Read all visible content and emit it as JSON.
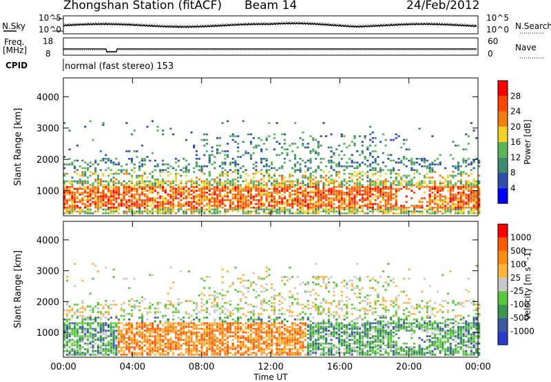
{
  "header": {
    "station": "Zhongshan Station (fitACF)",
    "beam": "Beam 14",
    "date": "24/Feb/2012"
  },
  "sky_panel": {
    "left_label": "N.Sky",
    "right_label": "N.Search",
    "ticks_left": [
      "10^5",
      "10^0"
    ],
    "ticks_right": [
      "10^5",
      "10^0"
    ]
  },
  "freq_panel": {
    "left_label_1": "Freq.",
    "left_label_2": "[MHz]",
    "right_label": "Nave",
    "ticks_left": [
      "18",
      "8"
    ],
    "ticks_right": [
      "60",
      "0"
    ]
  },
  "cpid": {
    "label": "CPID",
    "text": "normal (fast stereo) 153"
  },
  "colors": {
    "power": [
      "#0000ff",
      "#2f4fa8",
      "#3c8c6e",
      "#5ab45a",
      "#f0d228",
      "#f07d10",
      "#ff4600",
      "#ff0000"
    ],
    "velocity": [
      "#ff0000",
      "#ff5a00",
      "#ff8c14",
      "#ffb43c",
      "#c8c8c8",
      "#5ac83c",
      "#3c9650",
      "#3c5aa0",
      "#2a3cc8"
    ]
  },
  "chart_data": [
    {
      "type": "heatmap",
      "name": "power",
      "ylabel": "Slant Range [km]",
      "yticks": [
        "1000",
        "2000",
        "3000",
        "4000"
      ],
      "ylim": [
        200,
        4600
      ],
      "xlim_hours": [
        0,
        24
      ],
      "colorbar": {
        "label": "Power [dB]",
        "ticks": [
          "4",
          "8",
          "12",
          "16",
          "20",
          "24",
          "28"
        ]
      }
    },
    {
      "type": "heatmap",
      "name": "velocity",
      "xlabel": "Time UT",
      "xticks": [
        "00:00",
        "04:00",
        "08:00",
        "12:00",
        "16:00",
        "20:00",
        "00:00"
      ],
      "ylabel": "Slant Range [km]",
      "yticks": [
        "1000",
        "2000",
        "3000",
        "4000"
      ],
      "ylim": [
        200,
        4600
      ],
      "xlim_hours": [
        0,
        24
      ],
      "colorbar": {
        "label": "Velocity [m s^-1]",
        "ticks": [
          "1000",
          "500",
          "100",
          "25",
          "-25",
          "-100",
          "-500",
          "-1000"
        ]
      }
    }
  ]
}
